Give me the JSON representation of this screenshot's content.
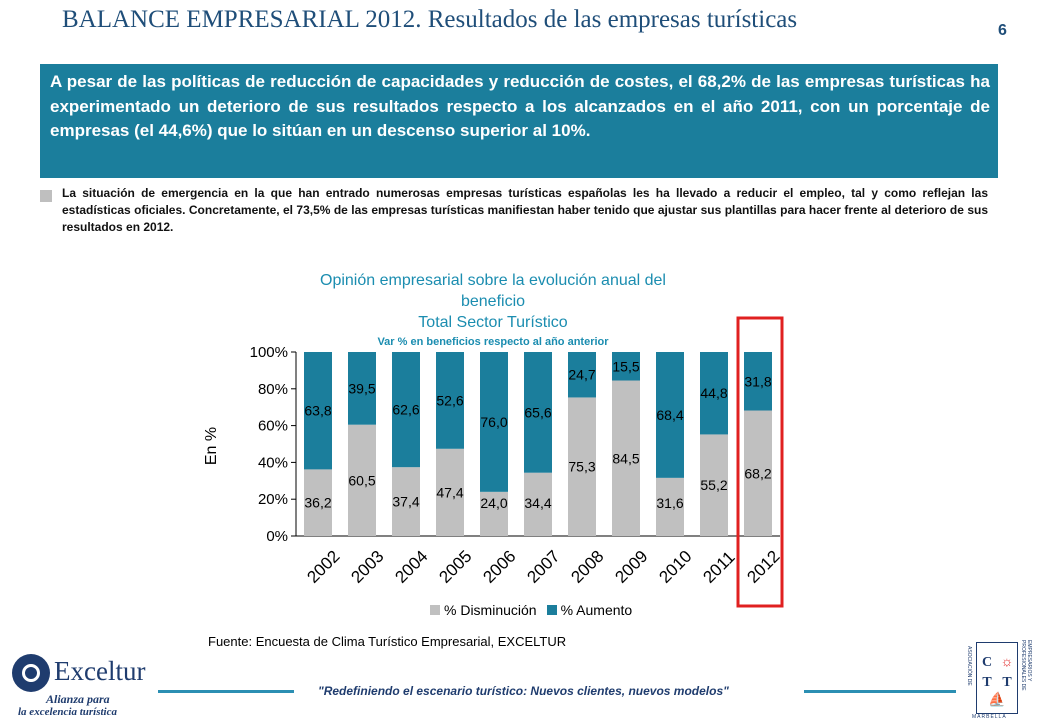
{
  "header": {
    "title": "BALANCE EMPRESARIAL 2012. Resultados de las empresas turísticas",
    "page_number": "6"
  },
  "highlight": "A pesar de las políticas de reducción de capacidades y reducción de costes, el 68,2% de las empresas turísticas ha experimentado un deterioro de sus resultados respecto a los alcanzados en el año 2011, con un porcentaje de empresas (el 44,6%) que lo sitúan en un descenso superior al 10%.",
  "paragraph": "La situación de emergencia en la que han entrado numerosas empresas turísticas españolas les ha llevado a reducir el empleo, tal y como reflejan las estadísticas oficiales. Concretamente, el 73,5% de las empresas turísticas manifiestan haber tenido que ajustar sus plantillas para hacer frente al deterioro de sus resultados en 2012.",
  "chart_data": {
    "type": "bar",
    "stacked": true,
    "title_lines": [
      "Opinión empresarial sobre la evolución anual del",
      "beneficio",
      "Total Sector Turístico"
    ],
    "subtitle": "Var % en beneficios respecto al año anterior",
    "ylabel": "En %",
    "ylim": [
      0,
      100
    ],
    "yticks": [
      "0%",
      "20%",
      "40%",
      "60%",
      "80%",
      "100%"
    ],
    "categories": [
      "2002",
      "2003",
      "2004",
      "2005",
      "2006",
      "2007",
      "2008",
      "2009",
      "2010",
      "2011",
      "2012"
    ],
    "series": [
      {
        "name": "% Disminución",
        "color": "#c0c0c0",
        "values": [
          36.2,
          60.5,
          37.4,
          47.4,
          24.0,
          34.4,
          75.3,
          84.5,
          31.6,
          55.2,
          68.2
        ],
        "labels": [
          "36,2",
          "60,5",
          "37,4",
          "47,4",
          "24,0",
          "34,4",
          "75,3",
          "84,5",
          "31,6",
          "55,2",
          "68,2"
        ]
      },
      {
        "name": "% Aumento",
        "color": "#1b7e9c",
        "values": [
          63.8,
          39.5,
          62.6,
          52.6,
          76.0,
          65.6,
          24.7,
          15.5,
          68.4,
          44.8,
          31.8
        ],
        "labels": [
          "63,8",
          "39,5",
          "62,6",
          "52,6",
          "76,0",
          "65,6",
          "24,7",
          "15,5",
          "68,4",
          "44,8",
          "31,8"
        ]
      }
    ],
    "highlighted_category": "2012",
    "highlight_color": "#e02020",
    "legend_position": "bottom"
  },
  "source": "Fuente: Encuesta de Clima Turístico Empresarial, EXCELTUR",
  "footer": {
    "tagline": "\"Redefiniendo el escenario turístico: Nuevos clientes, nuevos modelos\""
  },
  "logo_left": {
    "name": "Exceltur",
    "tagline_1": "Alianza para",
    "tagline_2": "la excelencia turística"
  },
  "logo_right": {
    "letters": [
      "C",
      "T",
      "T"
    ],
    "side_text": "EMPRESARIOS Y PROFESIONALES DE",
    "left_text": "ASOCIACIÓN DE",
    "bottom_text": "MARBELLA"
  }
}
